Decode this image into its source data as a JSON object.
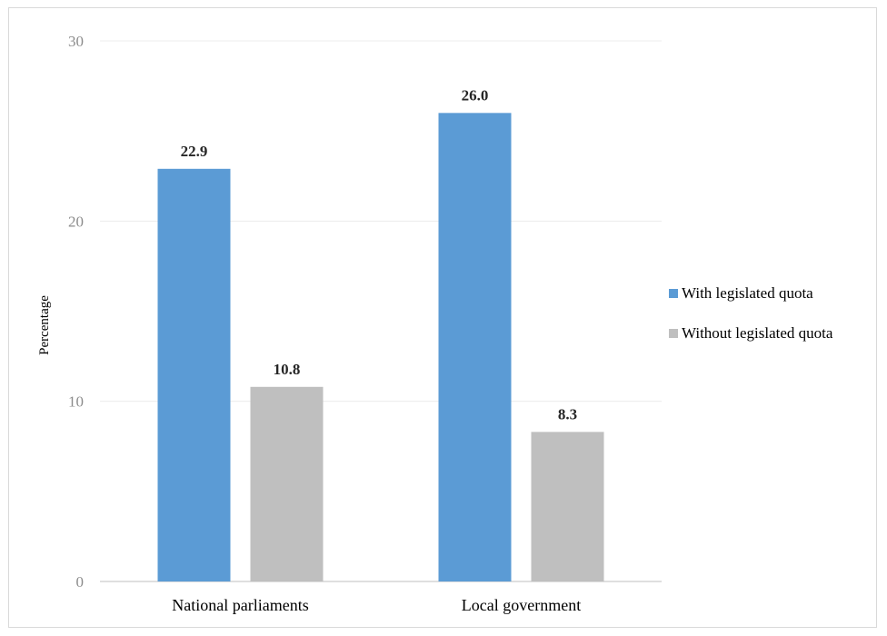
{
  "chart_data": {
    "type": "bar",
    "categories": [
      "National parliaments",
      "Local government"
    ],
    "series": [
      {
        "name": "With legislated quota",
        "values": [
          22.9,
          26.0
        ],
        "labels": [
          "22.9",
          "26.0"
        ],
        "color": "#5b9bd5"
      },
      {
        "name": "Without legislated quota",
        "values": [
          10.8,
          8.3
        ],
        "labels": [
          "10.8",
          "8.3"
        ],
        "color": "#bfbfbf"
      }
    ],
    "title": "",
    "xlabel": "",
    "ylabel": "Percentage",
    "ylim": [
      0,
      30
    ],
    "yticks": [
      "0",
      "10",
      "20",
      "30"
    ],
    "grid": true,
    "legend_position": "right"
  }
}
